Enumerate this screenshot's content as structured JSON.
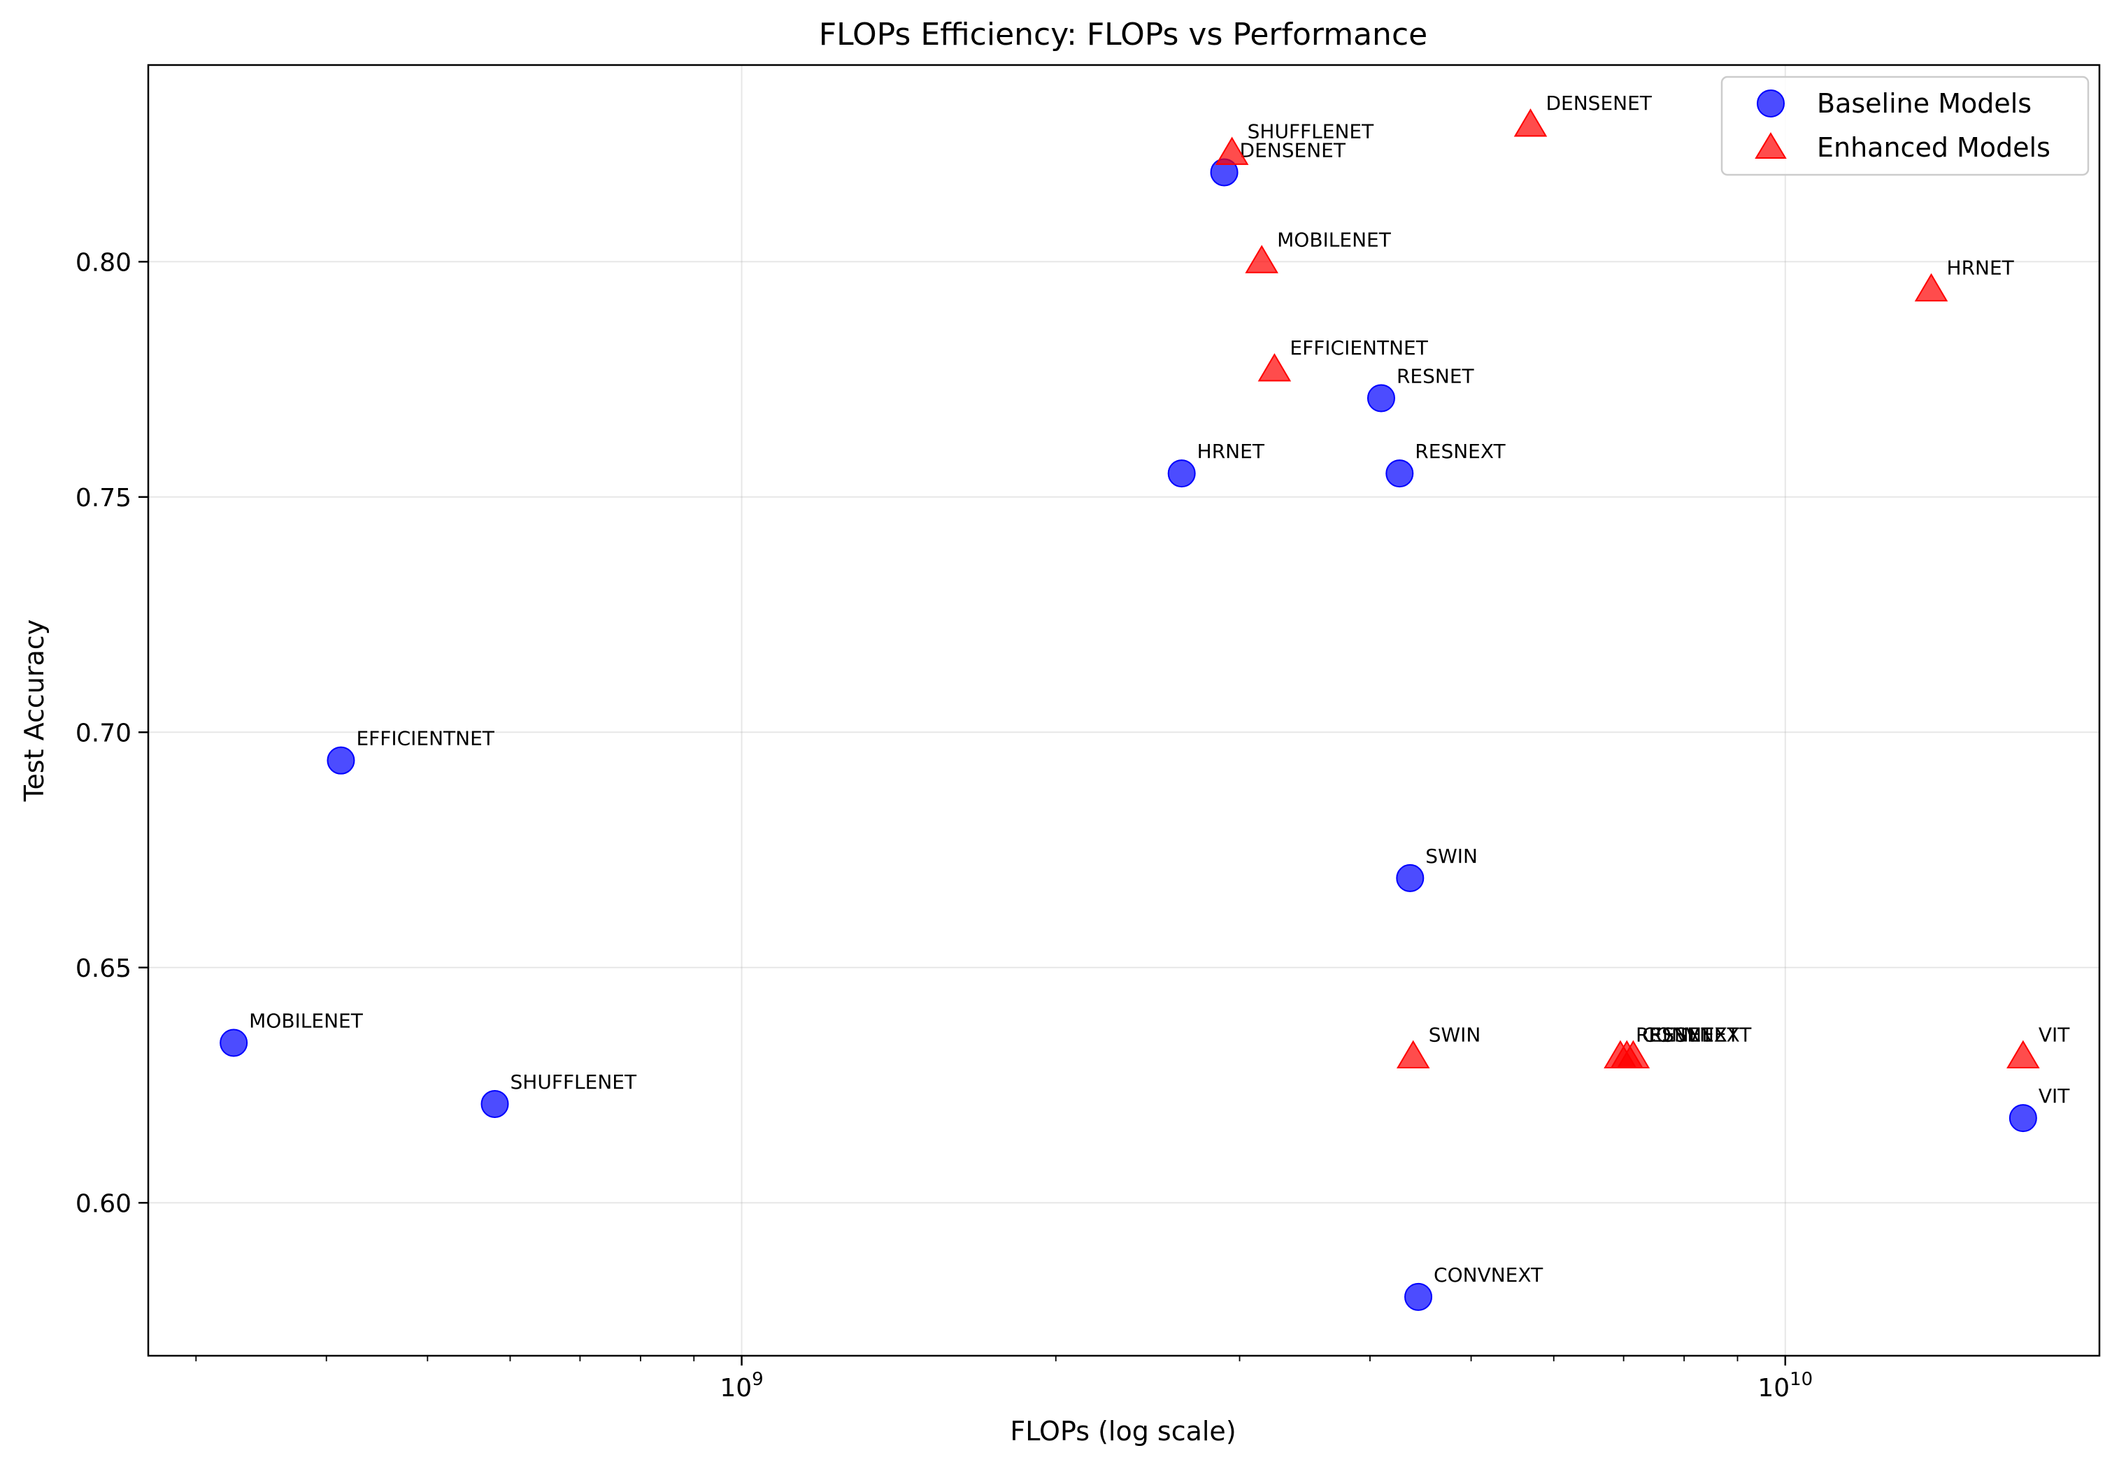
{
  "chart_data": {
    "type": "scatter",
    "title": "FLOPs Efficiency: FLOPs vs Performance",
    "xlabel": "FLOPs (log scale)",
    "ylabel": "Test Accuracy",
    "xscale": "log",
    "xlim": [
      270000000.0,
      20000000000.0
    ],
    "ylim": [
      0.5675,
      0.8418
    ],
    "grid": true,
    "legend_position": "top-right",
    "x_ticks": [
      {
        "value": 1000000000.0,
        "base": "10",
        "exp": "9"
      },
      {
        "value": 10000000000.0,
        "base": "10",
        "exp": "10"
      }
    ],
    "y_ticks": [
      {
        "value": 0.6,
        "label": "0.60"
      },
      {
        "value": 0.65,
        "label": "0.65"
      },
      {
        "value": 0.7,
        "label": "0.70"
      },
      {
        "value": 0.75,
        "label": "0.75"
      },
      {
        "value": 0.8,
        "label": "0.80"
      }
    ],
    "series": [
      {
        "name": "Baseline Models",
        "marker": "circle",
        "color": "#0000ff",
        "points": [
          {
            "label": "DENSENET",
            "x": 2900000000.0,
            "y": 0.819
          },
          {
            "label": "RESNET",
            "x": 4100000000.0,
            "y": 0.771
          },
          {
            "label": "HRNET",
            "x": 2640000000.0,
            "y": 0.755
          },
          {
            "label": "RESNEXT",
            "x": 4270000000.0,
            "y": 0.755
          },
          {
            "label": "EFFICIENTNET",
            "x": 413000000.0,
            "y": 0.694
          },
          {
            "label": "SWIN",
            "x": 4370000000.0,
            "y": 0.669
          },
          {
            "label": "MOBILENET",
            "x": 326000000.0,
            "y": 0.634
          },
          {
            "label": "SHUFFLENET",
            "x": 580000000.0,
            "y": 0.621
          },
          {
            "label": "VIT",
            "x": 16900000000.0,
            "y": 0.618
          },
          {
            "label": "CONVNEXT",
            "x": 4450000000.0,
            "y": 0.58
          }
        ]
      },
      {
        "name": "Enhanced Models",
        "marker": "triangle",
        "color": "#ff0000",
        "points": [
          {
            "label": "DENSENET",
            "x": 5700000000.0,
            "y": 0.829
          },
          {
            "label": "SHUFFLENET",
            "x": 2950000000.0,
            "y": 0.823
          },
          {
            "label": "MOBILENET",
            "x": 3150000000.0,
            "y": 0.8
          },
          {
            "label": "HRNET",
            "x": 13800000000.0,
            "y": 0.794
          },
          {
            "label": "EFFICIENTNET",
            "x": 3240000000.0,
            "y": 0.777
          },
          {
            "label": "SWIN",
            "x": 4400000000.0,
            "y": 0.631
          },
          {
            "label": "RESNET",
            "x": 6950000000.0,
            "y": 0.631
          },
          {
            "label": "CONVNEXT",
            "x": 7050000000.0,
            "y": 0.631
          },
          {
            "label": "RESNEXT",
            "x": 7150000000.0,
            "y": 0.631
          },
          {
            "label": "VIT",
            "x": 16900000000.0,
            "y": 0.631
          }
        ]
      }
    ]
  }
}
